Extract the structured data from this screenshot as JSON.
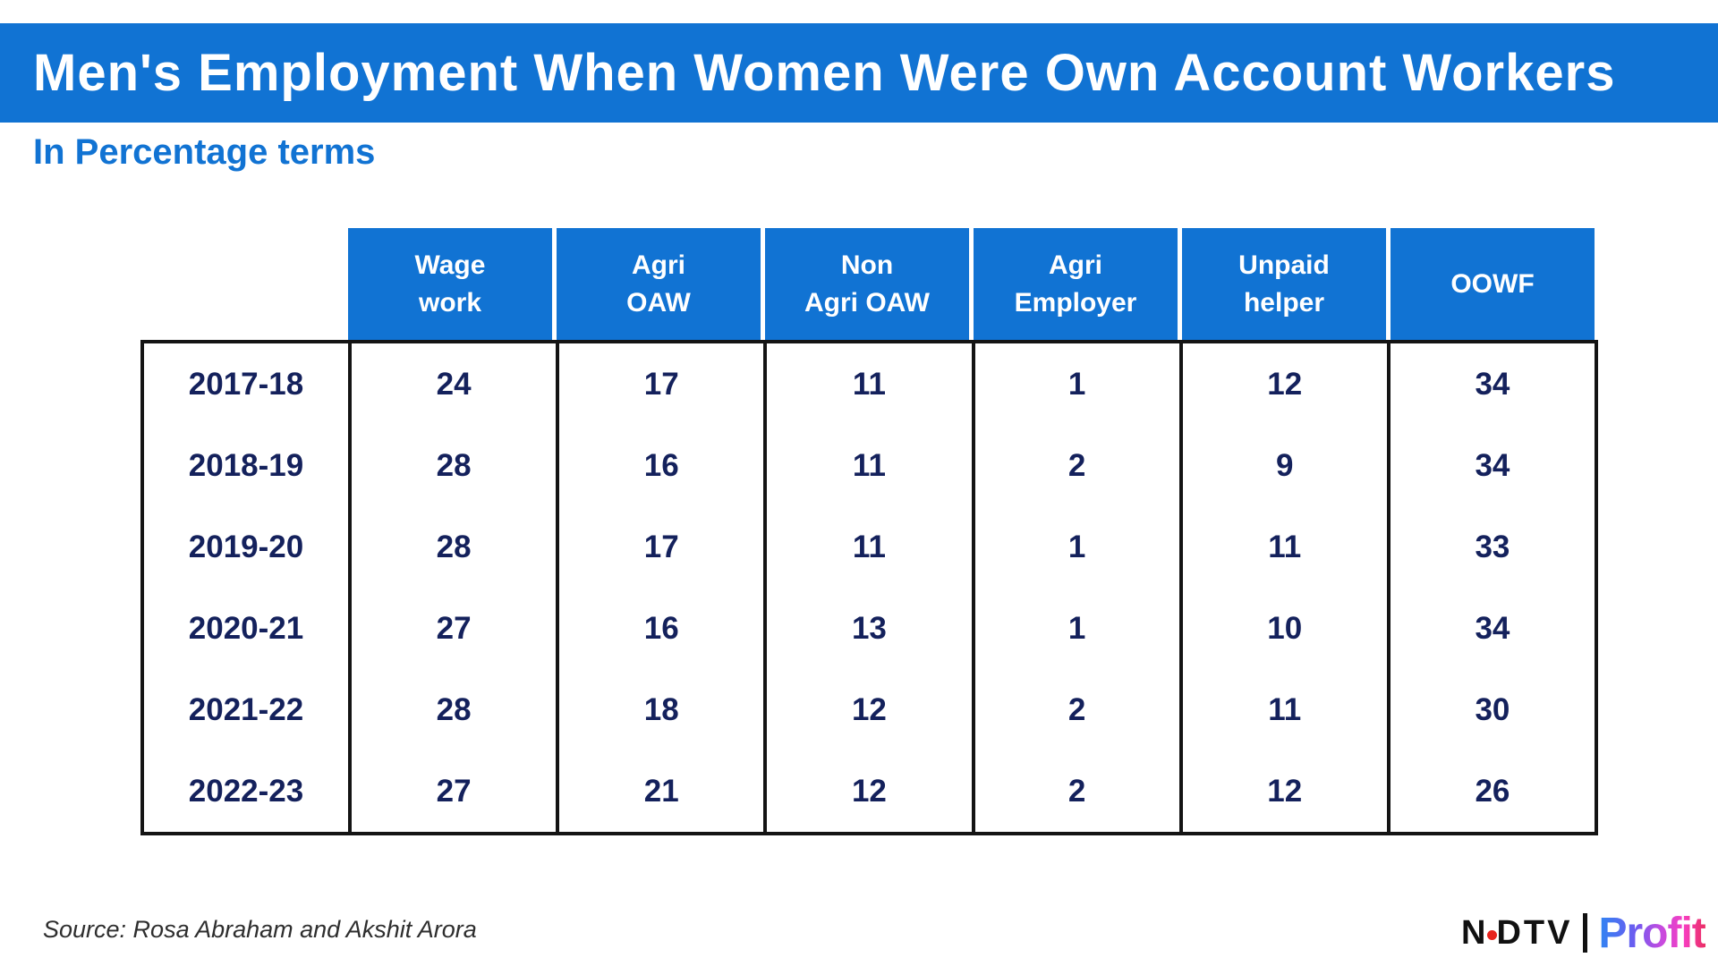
{
  "title": "Men's Employment When Women Were Own Account Workers",
  "subtitle": "In Percentage terms",
  "source_note": "Source: Rosa Abraham and Akshit Arora",
  "brand": {
    "ndtv_n": "N",
    "ndtv_dtv": "DTV",
    "profit": "Profit"
  },
  "colors": {
    "accent_blue": "#1173d3",
    "navy_text": "#14215c",
    "border_black": "#141414",
    "source_gray": "#2e2e2e",
    "dot_red": "#e8231d",
    "profit_g1": "#2e86f2",
    "profit_g2": "#6d5bf0",
    "profit_g3": "#c34be0",
    "profit_g4": "#f73ec1",
    "profit_g5": "#ea2e63"
  },
  "chart_data": {
    "type": "table",
    "title": "Men's Employment When Women Were Own Account Workers",
    "subtitle": "In Percentage terms",
    "unit": "percent",
    "columns": [
      "Wage work",
      "Agri OAW",
      "Non Agri OAW",
      "Agri Employer",
      "Unpaid helper",
      "OOWF"
    ],
    "column_lines": [
      [
        "Wage",
        "work"
      ],
      [
        "Agri",
        "OAW"
      ],
      [
        "Non",
        "Agri OAW"
      ],
      [
        "Agri",
        "Employer"
      ],
      [
        "Unpaid",
        "helper"
      ],
      [
        "OOWF"
      ]
    ],
    "row_labels": [
      "2017-18",
      "2018-19",
      "2019-20",
      "2020-21",
      "2021-22",
      "2022-23"
    ],
    "rows": [
      [
        24,
        17,
        11,
        1,
        12,
        34
      ],
      [
        28,
        16,
        11,
        2,
        9,
        34
      ],
      [
        28,
        17,
        11,
        1,
        11,
        33
      ],
      [
        27,
        16,
        13,
        1,
        10,
        34
      ],
      [
        28,
        18,
        12,
        2,
        11,
        30
      ],
      [
        27,
        21,
        12,
        2,
        12,
        26
      ]
    ],
    "source": "Source: Rosa Abraham and Akshit Arora",
    "legend_position": "none",
    "grid": "vertical-dividers-only"
  }
}
